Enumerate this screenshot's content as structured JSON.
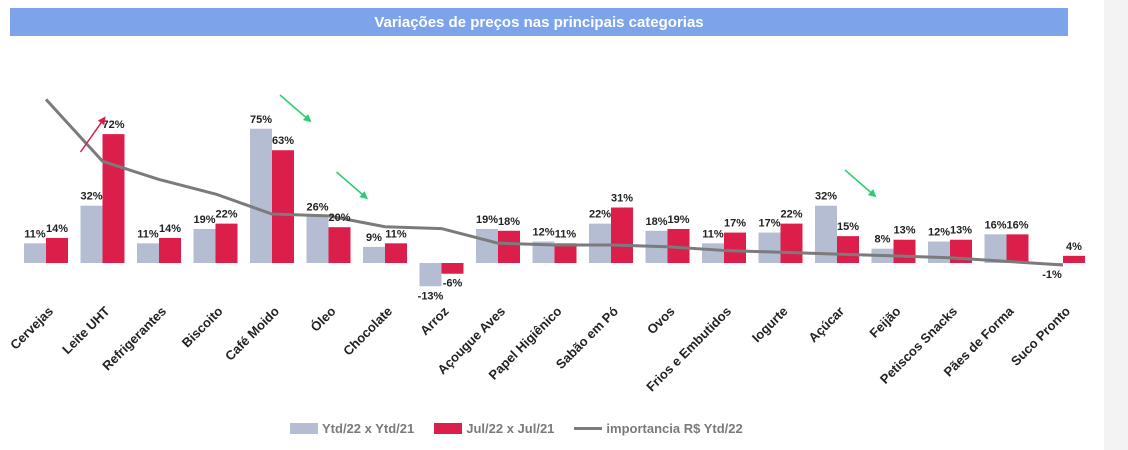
{
  "title": "Variações de preços nas principais categorias",
  "colors": {
    "series1": "#b4bdd1",
    "series2": "#dc1e4b",
    "line": "#7b7b7b",
    "title_bg": "#7da3ea",
    "trend_up": "#dc1e4b",
    "trend_down": "#2ecc71"
  },
  "legend": {
    "series1": "Ytd/22 x Ytd/21",
    "series2": "Jul/22 x Jul/21",
    "line": "importancia R$ Ytd/22"
  },
  "chart_data": {
    "type": "bar",
    "title": "Variações de preços nas principais categorias",
    "categories": [
      "Cervejas",
      "Leite UHT",
      "Refrigerantes",
      "Biscoito",
      "Café Moido",
      "Óleo",
      "Chocolate",
      "Arroz",
      "Açougue Aves",
      "Papel Higiênico",
      "Sabão em Pó",
      "Ovos",
      "Frios e Embutidos",
      "Iogurte",
      "Açúcar",
      "Feijão",
      "Petiscos Snacks",
      "Pães de Forma",
      "Suco Pronto"
    ],
    "series": [
      {
        "name": "Ytd/22 x Ytd/21",
        "values": [
          11,
          32,
          11,
          19,
          75,
          26,
          9,
          -13,
          19,
          12,
          22,
          18,
          11,
          17,
          32,
          8,
          12,
          16,
          -1
        ],
        "labels": [
          "11%",
          "32%",
          "11%",
          "19%",
          "75%",
          "26%",
          "9%",
          "-13%",
          "19%",
          "12%",
          "22%",
          "18%",
          "11%",
          "17%",
          "32%",
          "8%",
          "12%",
          "16%",
          "-1%"
        ]
      },
      {
        "name": "Jul/22 x Jul/21",
        "values": [
          14,
          72,
          14,
          22,
          63,
          20,
          11,
          -6,
          18,
          11,
          31,
          19,
          17,
          22,
          15,
          13,
          13,
          16,
          4
        ],
        "labels": [
          "14%",
          "72%",
          "14%",
          "22%",
          "63%",
          "20%",
          "11%",
          "-6%",
          "18%",
          "11%",
          "31%",
          "19%",
          "17%",
          "22%",
          "15%",
          "13%",
          "13%",
          "16%",
          "4%"
        ]
      },
      {
        "name": "importancia R$ Ytd/22",
        "type": "line",
        "values": [
          91,
          57,
          47,
          39,
          28,
          27,
          21,
          20,
          12,
          11,
          11,
          10,
          8,
          7,
          6,
          5,
          4,
          2,
          0
        ]
      }
    ],
    "trend_arrows": [
      {
        "category": "Leite UHT",
        "direction": "up"
      },
      {
        "category": "Café Moido",
        "direction": "down"
      },
      {
        "category": "Óleo",
        "direction": "down"
      },
      {
        "category": "Açúcar",
        "direction": "down"
      }
    ],
    "grid": false,
    "legend_position": "bottom"
  }
}
